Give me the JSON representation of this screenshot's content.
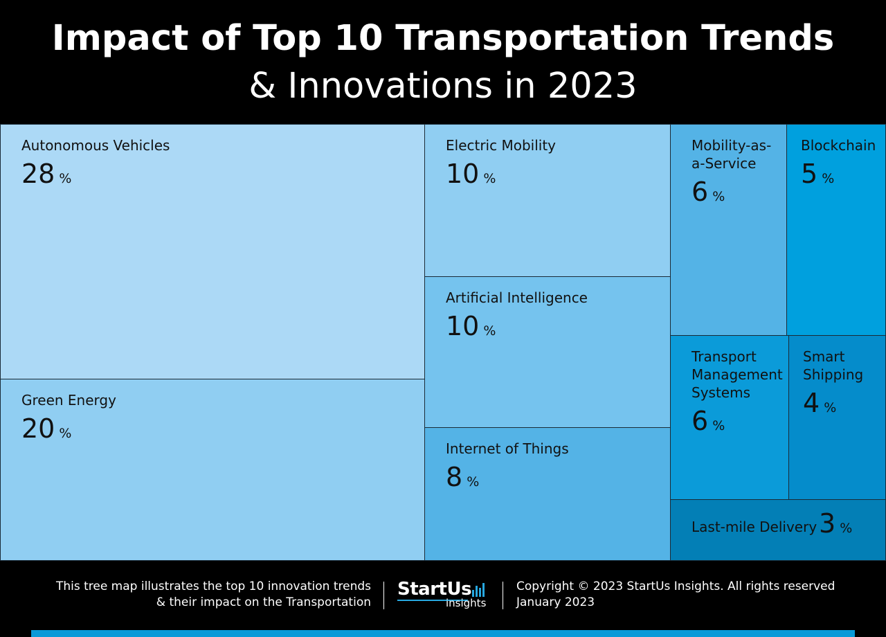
{
  "header": {
    "title_line1": "Impact of Top 10 Transportation Trends",
    "title_line2": "& Innovations in 2023"
  },
  "chart_data": {
    "type": "treemap",
    "title": "Impact of Top 10 Transportation Trends & Innovations in 2023",
    "unit": "%",
    "items": [
      {
        "label": "Autonomous Vehicles",
        "value": 28,
        "color": "#acd9f6"
      },
      {
        "label": "Green Energy",
        "value": 20,
        "color": "#90cef2"
      },
      {
        "label": "Electric Mobility",
        "value": 10,
        "color": "#90cef2"
      },
      {
        "label": "Artificial Intelligence",
        "value": 10,
        "color": "#75c3ee"
      },
      {
        "label": "Internet of Things",
        "value": 8,
        "color": "#54b3e6"
      },
      {
        "label": "Mobility-as-a-Service",
        "value": 6,
        "color": "#54b3e6"
      },
      {
        "label": "Blockchain",
        "value": 5,
        "color": "#00a0de"
      },
      {
        "label": "Transport Management Systems",
        "value": 6,
        "color": "#0b9bd9"
      },
      {
        "label": "Smart Shipping",
        "value": 4,
        "color": "#058ccb"
      },
      {
        "label": "Last-mile Delivery",
        "value": 3,
        "color": "#037fb6"
      }
    ]
  },
  "footer": {
    "description_line1": "This tree map illustrates the top 10 innovation trends",
    "description_line2": "& their impact on the Transportation",
    "logo_main": "StartUs",
    "logo_sub": "insights",
    "copyright": "Copyright © 2023 StartUs Insights. All rights reserved",
    "date": "January 2023"
  }
}
